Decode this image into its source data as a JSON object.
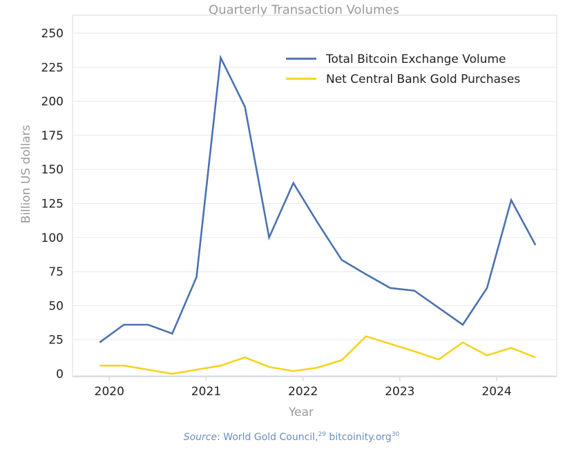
{
  "chart_data": {
    "type": "line",
    "title": "Quarterly Transaction Volumes",
    "xlabel": "Year",
    "ylabel": "Billion US dollars",
    "xlim": [
      2019.62,
      2024.62
    ],
    "ylim": [
      0,
      250
    ],
    "xticks": [
      2020,
      2021,
      2022,
      2023,
      2024
    ],
    "yticks": [
      0,
      25,
      50,
      75,
      100,
      125,
      150,
      175,
      200,
      225,
      250
    ],
    "grid": "horizontal",
    "legend_position": "top-right",
    "x": [
      2019.9,
      2020.15,
      2020.4,
      2020.65,
      2020.9,
      2021.15,
      2021.4,
      2021.65,
      2021.9,
      2022.15,
      2022.4,
      2022.65,
      2022.9,
      2023.15,
      2023.4,
      2023.65,
      2023.9,
      2024.15,
      2024.4
    ],
    "series": [
      {
        "name": "Total Bitcoin Exchange Volume",
        "color": "#4a72b0",
        "values": [
          23,
          36,
          36,
          29.5,
          71,
          232,
          196,
          100,
          140,
          111,
          83.5,
          73,
          63,
          61,
          48.5,
          36,
          63,
          127.5,
          94.5
        ]
      },
      {
        "name": "Net Central Bank Gold Purchases",
        "color": "#f5d31c",
        "values": [
          6,
          6,
          3,
          0,
          3,
          6,
          12,
          5,
          2,
          4.5,
          10,
          27.5,
          22,
          16.5,
          10.5,
          23,
          13.5,
          19,
          12
        ]
      }
    ]
  },
  "source": {
    "label": "Source",
    "text": ": World Gold Council,",
    "ref1": "29",
    "text2": " bitcoinity.org",
    "ref2": "30"
  }
}
